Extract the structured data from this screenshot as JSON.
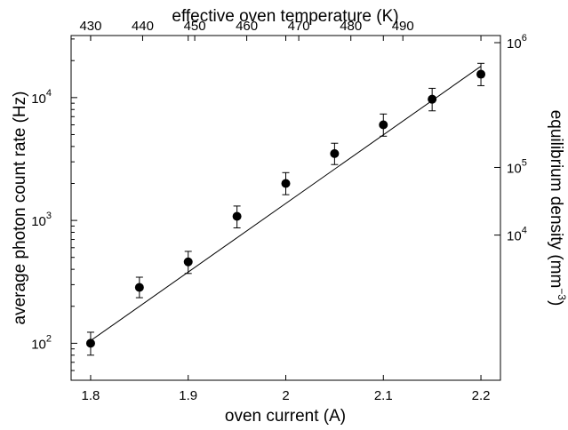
{
  "chart_data": {
    "type": "scatter",
    "title": "",
    "xlabel": "oven current (A)",
    "ylabel": "average photon count rate (Hz)",
    "x2label": "effective oven temperature (K)",
    "y2label_text": "equilibrium density (mm",
    "y2label_exponent": "−3",
    "y2label_close": ")",
    "xlim": [
      1.78,
      2.22
    ],
    "ylim": [
      50,
      32000
    ],
    "yscale": "log",
    "x_ticks": [
      "1.8",
      "1.9",
      "2",
      "2.1",
      "2.2"
    ],
    "x_tick_values": [
      1.8,
      1.9,
      2.0,
      2.1,
      2.2
    ],
    "y_ticks": [
      {
        "value": 100,
        "base": "10",
        "exp": "2"
      },
      {
        "value": 1000,
        "base": "10",
        "exp": "3"
      },
      {
        "value": 10000,
        "base": "10",
        "exp": "4"
      }
    ],
    "x2_ticks": [
      "430",
      "440",
      "450",
      "460",
      "470",
      "480",
      "490"
    ],
    "x2_tick_positions": [
      1.8,
      1.8533,
      1.9067,
      1.96,
      2.0133,
      2.0667,
      2.12
    ],
    "y2_ticks": [
      {
        "base": "10",
        "exp": "4",
        "at_y": 760
      },
      {
        "base": "10",
        "exp": "5",
        "at_y": 2700
      },
      {
        "base": "10",
        "exp": "6",
        "at_y": 28000
      }
    ],
    "series": [
      {
        "name": "",
        "x": [
          1.8,
          1.85,
          1.9,
          1.95,
          2.0,
          2.05,
          2.1,
          2.15,
          2.2
        ],
        "y": [
          100,
          285,
          460,
          1080,
          2000,
          3500,
          6000,
          9700,
          15500
        ],
        "yerr_low": [
          80,
          235,
          370,
          870,
          1620,
          2850,
          4850,
          7800,
          12500
        ],
        "yerr_high": [
          123,
          345,
          560,
          1310,
          2450,
          4250,
          7350,
          11900,
          19000
        ]
      }
    ],
    "fit_line": {
      "x": [
        1.8,
        2.2
      ],
      "y": [
        105,
        18000
      ]
    },
    "grid": false,
    "legend": "none"
  }
}
